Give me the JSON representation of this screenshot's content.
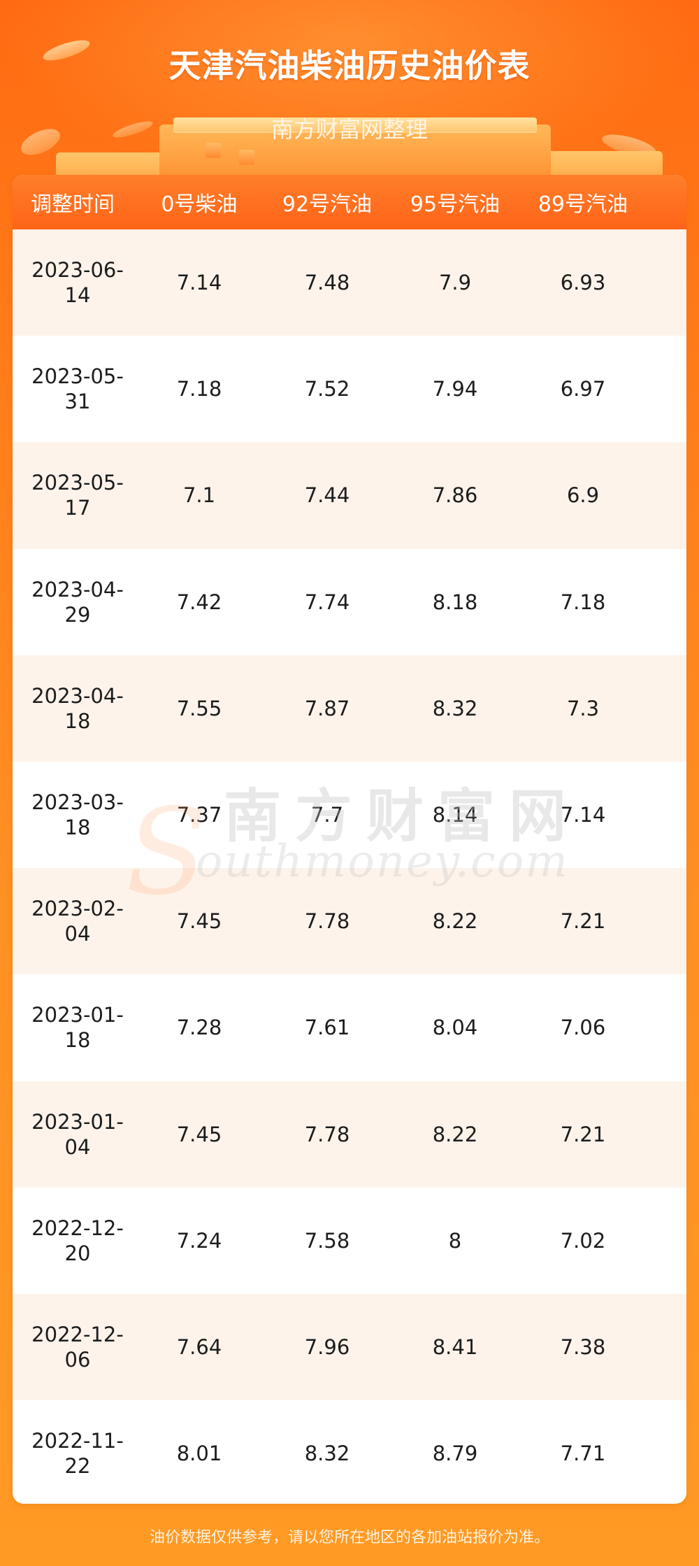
{
  "header": {
    "title": "天津汽油柴油历史油价表",
    "subtitle": "南方财富网整理"
  },
  "table": {
    "columns": [
      "调整时间",
      "0号柴油",
      "92号汽油",
      "95号汽油",
      "89号汽油"
    ],
    "rows": [
      [
        "2023-06-14",
        "7.14",
        "7.48",
        "7.9",
        "6.93"
      ],
      [
        "2023-05-31",
        "7.18",
        "7.52",
        "7.94",
        "6.97"
      ],
      [
        "2023-05-17",
        "7.1",
        "7.44",
        "7.86",
        "6.9"
      ],
      [
        "2023-04-29",
        "7.42",
        "7.74",
        "8.18",
        "7.18"
      ],
      [
        "2023-04-18",
        "7.55",
        "7.87",
        "8.32",
        "7.3"
      ],
      [
        "2023-03-18",
        "7.37",
        "7.7",
        "8.14",
        "7.14"
      ],
      [
        "2023-02-04",
        "7.45",
        "7.78",
        "8.22",
        "7.21"
      ],
      [
        "2023-01-18",
        "7.28",
        "7.61",
        "8.04",
        "7.06"
      ],
      [
        "2023-01-04",
        "7.45",
        "7.78",
        "8.22",
        "7.21"
      ],
      [
        "2022-12-20",
        "7.24",
        "7.58",
        "8",
        "7.02"
      ],
      [
        "2022-12-06",
        "7.64",
        "7.96",
        "8.41",
        "7.38"
      ],
      [
        "2022-11-22",
        "8.01",
        "8.32",
        "8.79",
        "7.71"
      ]
    ]
  },
  "watermark": {
    "cn": "南方财富网",
    "en_letter": "S",
    "en_rest": "outhmoney.com"
  },
  "footer": {
    "note": "油价数据仅供参考，请以您所在地区的各加油站报价为准。"
  },
  "colors": {
    "background": "#ff8a20",
    "header_row": "#ff6e1e",
    "row_alt": "#fef3ea",
    "text": "#1c1c1c"
  }
}
